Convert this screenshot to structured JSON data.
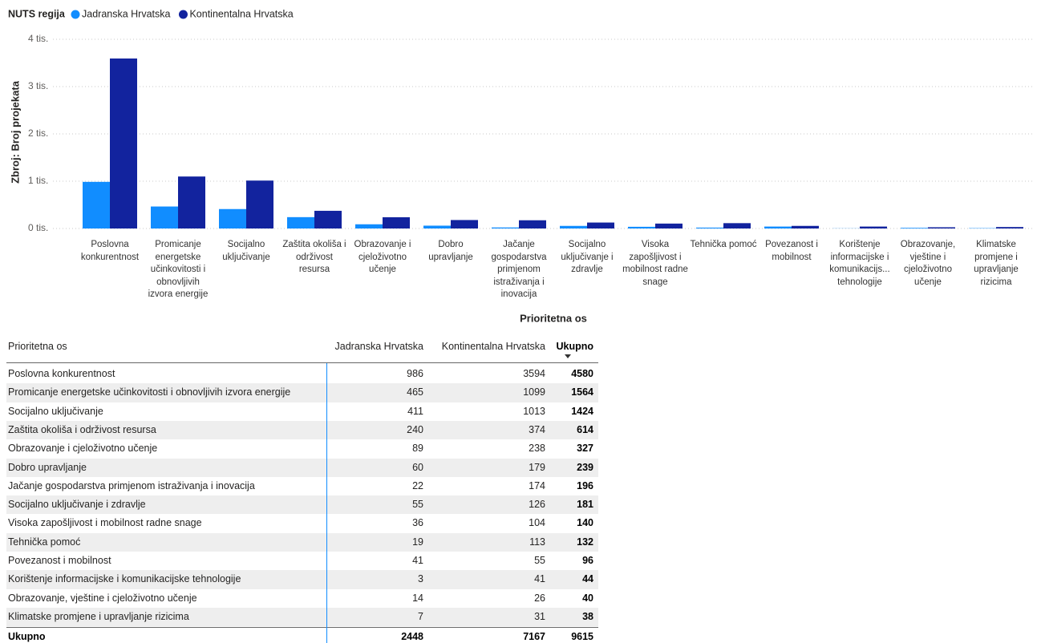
{
  "chart_data": {
    "type": "bar",
    "legend_title": "NUTS regija",
    "y_label": "Zbroj: Broj projekata",
    "x_label": "Prioritetna os",
    "categories": [
      "Poslovna konkurentnost",
      "Promicanje energetske učinkovitosti i obnovljivih izvora energije",
      "Socijalno uključivanje",
      "Zaštita okoliša i održivost resursa",
      "Obrazovanje i cjeloživotno učenje",
      "Dobro upravljanje",
      "Jačanje gospodarstva primjenom istraživanja i inovacija",
      "Socijalno uključivanje i zdravlje",
      "Visoka zapošljivost i mobilnost radne snage",
      "Tehnička pomoć",
      "Povezanost i mobilnost",
      "Korištenje informacijske i komunikacijs... tehnologije",
      "Obrazovanje, vještine i cjeloživotno učenje",
      "Klimatske promjene i upravljanje rizicima"
    ],
    "series": [
      {
        "name": "Jadranska Hrvatska",
        "color": "#118dff",
        "values": [
          986,
          465,
          411,
          240,
          89,
          60,
          22,
          55,
          36,
          19,
          41,
          3,
          14,
          7
        ]
      },
      {
        "name": "Kontinentalna Hrvatska",
        "color": "#12239e",
        "values": [
          3594,
          1099,
          1013,
          374,
          238,
          179,
          174,
          126,
          104,
          113,
          55,
          41,
          26,
          31
        ]
      }
    ],
    "ylim": [
      0,
      4000
    ],
    "yticks": [
      {
        "value": 0,
        "label": "0 tis."
      },
      {
        "value": 1000,
        "label": "1 tis."
      },
      {
        "value": 2000,
        "label": "2 tis."
      },
      {
        "value": 3000,
        "label": "3 tis."
      },
      {
        "value": 4000,
        "label": "4 tis."
      }
    ],
    "grid": true
  },
  "table": {
    "columns": [
      "Prioritetna os",
      "Jadranska Hrvatska",
      "Kontinentalna Hrvatska",
      "Ukupno"
    ],
    "rows": [
      [
        "Poslovna konkurentnost",
        986,
        3594,
        4580
      ],
      [
        "Promicanje energetske učinkovitosti i obnovljivih izvora energije",
        465,
        1099,
        1564
      ],
      [
        "Socijalno uključivanje",
        411,
        1013,
        1424
      ],
      [
        "Zaštita okoliša i održivost resursa",
        240,
        374,
        614
      ],
      [
        "Obrazovanje i cjeloživotno učenje",
        89,
        238,
        327
      ],
      [
        "Dobro upravljanje",
        60,
        179,
        239
      ],
      [
        "Jačanje gospodarstva primjenom istraživanja i inovacija",
        22,
        174,
        196
      ],
      [
        "Socijalno uključivanje i zdravlje",
        55,
        126,
        181
      ],
      [
        "Visoka zapošljivost i mobilnost radne snage",
        36,
        104,
        140
      ],
      [
        "Tehnička pomoć",
        19,
        113,
        132
      ],
      [
        "Povezanost i mobilnost",
        41,
        55,
        96
      ],
      [
        "Korištenje informacijske i komunikacijske tehnologije",
        3,
        41,
        44
      ],
      [
        "Obrazovanje, vještine i cjeloživotno učenje",
        14,
        26,
        40
      ],
      [
        "Klimatske promjene i upravljanje rizicima",
        7,
        31,
        38
      ]
    ],
    "total": [
      "Ukupno",
      2448,
      7167,
      9615
    ]
  }
}
